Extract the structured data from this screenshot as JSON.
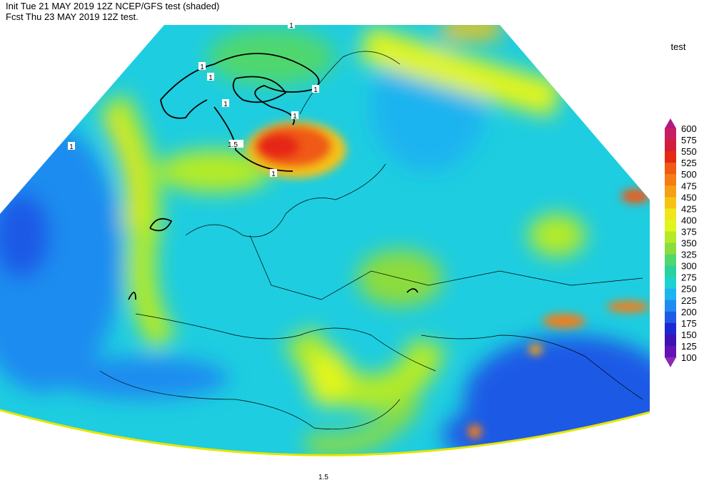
{
  "header": {
    "init": "Init  Tue 21 MAY 2019 12Z  NCEP/GFS test (shaded)",
    "forecast": "Fcst Thu 23 MAY 2019 12Z  test."
  },
  "legend": {
    "title": "test",
    "levels": [
      600,
      575,
      550,
      525,
      500,
      475,
      450,
      425,
      400,
      375,
      350,
      325,
      300,
      275,
      250,
      225,
      200,
      175,
      150,
      125,
      100
    ],
    "colors": [
      "#b4187f",
      "#c81e64",
      "#d21e3c",
      "#e62814",
      "#f05a14",
      "#f57d14",
      "#f5a014",
      "#f5c314",
      "#f0e61e",
      "#e1f51e",
      "#b4eb28",
      "#8cdc3c",
      "#50d76e",
      "#28d2a0",
      "#1ed2d2",
      "#1eb4f0",
      "#1e8cf0",
      "#1e5ae6",
      "#1e28d2",
      "#3c14b4",
      "#6414b4",
      "#8c28b4"
    ]
  },
  "contour_labels": [
    "1",
    "1",
    "1",
    "1",
    "1",
    "1",
    "1.5",
    "1",
    "1",
    "1.5"
  ]
}
